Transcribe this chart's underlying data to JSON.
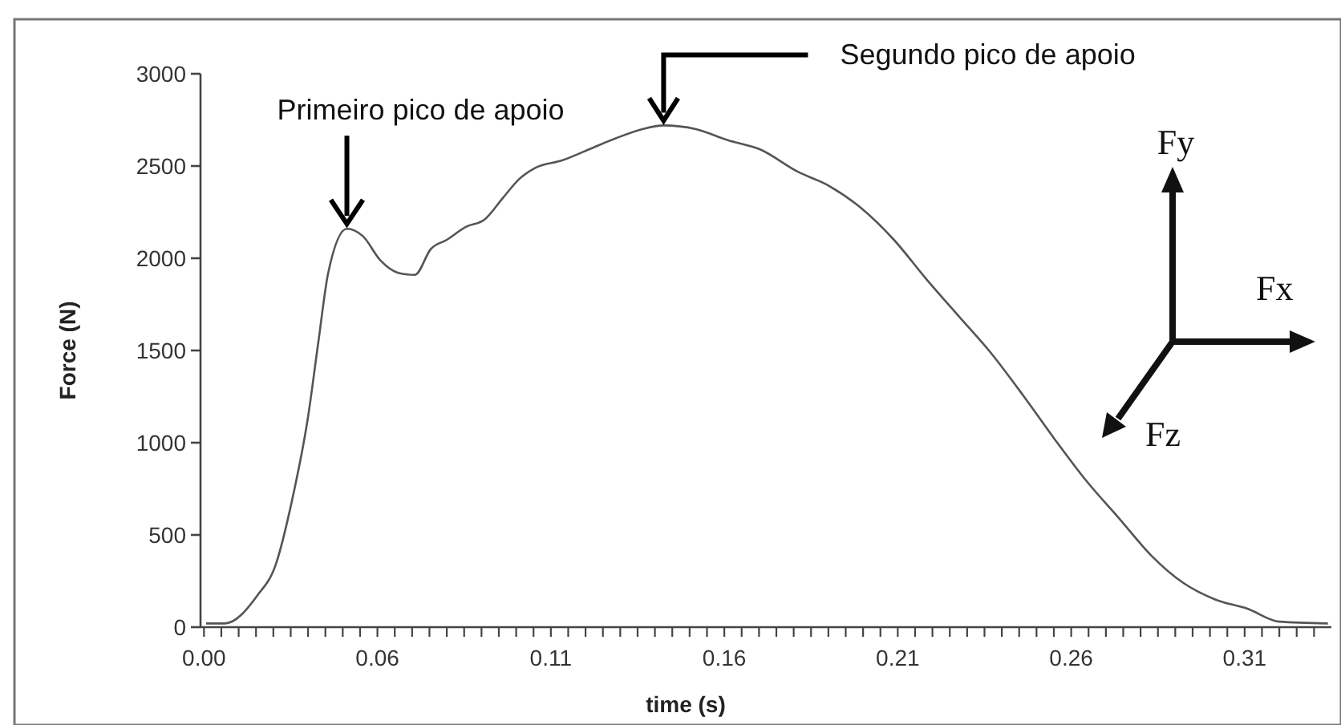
{
  "chart_data": {
    "type": "line",
    "xlabel": "time (s)",
    "ylabel": "Force (N)",
    "x": [
      0.0056,
      0.011,
      0.0203,
      0.0257,
      0.0303,
      0.035,
      0.038,
      0.0408,
      0.0462,
      0.0508,
      0.0558,
      0.0612,
      0.0658,
      0.0704,
      0.075,
      0.0805,
      0.0859,
      0.0913,
      0.0959,
      0.1005,
      0.1082,
      0.116,
      0.1237,
      0.1314,
      0.1375,
      0.1468,
      0.156,
      0.1653,
      0.1761,
      0.1854,
      0.1946,
      0.2039,
      0.2131,
      0.2224,
      0.2317,
      0.241,
      0.2502,
      0.2595,
      0.2688,
      0.278,
      0.2873,
      0.2965,
      0.3058,
      0.315,
      0.329
    ],
    "series": [
      {
        "color": "#555555",
        "values": [
          20,
          20,
          170,
          340,
          680,
          1140,
          1550,
          1920,
          2160,
          2120,
          1990,
          1920,
          1910,
          2050,
          2100,
          2170,
          2210,
          2330,
          2430,
          2490,
          2530,
          2590,
          2650,
          2700,
          2720,
          2700,
          2640,
          2590,
          2470,
          2390,
          2270,
          2100,
          1890,
          1690,
          1490,
          1260,
          1020,
          790,
          590,
          390,
          240,
          150,
          100,
          30,
          20
        ]
      }
    ],
    "xlim": [
      0.004,
      0.33
    ],
    "xticks": [
      {
        "value": 0.005,
        "label": "0.00"
      },
      {
        "value": 0.01,
        "label": null
      },
      {
        "value": 0.015,
        "label": null
      },
      {
        "value": 0.02,
        "label": null
      },
      {
        "value": 0.025,
        "label": null
      },
      {
        "value": 0.03,
        "label": null
      },
      {
        "value": 0.035,
        "label": null
      },
      {
        "value": 0.04,
        "label": null
      },
      {
        "value": 0.045,
        "label": null
      },
      {
        "value": 0.05,
        "label": null
      },
      {
        "value": 0.055,
        "label": "0.06"
      },
      {
        "value": 0.06,
        "label": null
      },
      {
        "value": 0.065,
        "label": null
      },
      {
        "value": 0.07,
        "label": null
      },
      {
        "value": 0.075,
        "label": null
      },
      {
        "value": 0.08,
        "label": null
      },
      {
        "value": 0.085,
        "label": null
      },
      {
        "value": 0.09,
        "label": null
      },
      {
        "value": 0.095,
        "label": null
      },
      {
        "value": 0.1,
        "label": null
      },
      {
        "value": 0.105,
        "label": "0.11"
      },
      {
        "value": 0.11,
        "label": null
      },
      {
        "value": 0.115,
        "label": null
      },
      {
        "value": 0.12,
        "label": null
      },
      {
        "value": 0.125,
        "label": null
      },
      {
        "value": 0.13,
        "label": null
      },
      {
        "value": 0.135,
        "label": null
      },
      {
        "value": 0.14,
        "label": null
      },
      {
        "value": 0.145,
        "label": null
      },
      {
        "value": 0.15,
        "label": null
      },
      {
        "value": 0.155,
        "label": "0.16"
      },
      {
        "value": 0.16,
        "label": null
      },
      {
        "value": 0.165,
        "label": null
      },
      {
        "value": 0.17,
        "label": null
      },
      {
        "value": 0.175,
        "label": null
      },
      {
        "value": 0.18,
        "label": null
      },
      {
        "value": 0.185,
        "label": null
      },
      {
        "value": 0.19,
        "label": null
      },
      {
        "value": 0.195,
        "label": null
      },
      {
        "value": 0.2,
        "label": null
      },
      {
        "value": 0.205,
        "label": "0.21"
      },
      {
        "value": 0.21,
        "label": null
      },
      {
        "value": 0.215,
        "label": null
      },
      {
        "value": 0.22,
        "label": null
      },
      {
        "value": 0.225,
        "label": null
      },
      {
        "value": 0.23,
        "label": null
      },
      {
        "value": 0.235,
        "label": null
      },
      {
        "value": 0.24,
        "label": null
      },
      {
        "value": 0.245,
        "label": null
      },
      {
        "value": 0.25,
        "label": null
      },
      {
        "value": 0.255,
        "label": "0.26"
      },
      {
        "value": 0.26,
        "label": null
      },
      {
        "value": 0.265,
        "label": null
      },
      {
        "value": 0.27,
        "label": null
      },
      {
        "value": 0.275,
        "label": null
      },
      {
        "value": 0.28,
        "label": null
      },
      {
        "value": 0.285,
        "label": null
      },
      {
        "value": 0.29,
        "label": null
      },
      {
        "value": 0.295,
        "label": null
      },
      {
        "value": 0.3,
        "label": null
      },
      {
        "value": 0.305,
        "label": "0.31"
      },
      {
        "value": 0.31,
        "label": null
      },
      {
        "value": 0.315,
        "label": null
      },
      {
        "value": 0.32,
        "label": null
      },
      {
        "value": 0.325,
        "label": null
      }
    ],
    "ylim": [
      0,
      3000
    ],
    "yticks": [
      0,
      500,
      1000,
      1500,
      2000,
      2500,
      3000
    ],
    "grid": false,
    "marker": "none",
    "line_style": "solid",
    "annotations": [
      {
        "text": "Primeiro pico de apoio",
        "x": 0.0462,
        "y": 2160
      },
      {
        "text": "Segundo pico de apoio",
        "x": 0.1375,
        "y": 2720
      },
      "Fy",
      "Fx",
      "Fz"
    ]
  }
}
